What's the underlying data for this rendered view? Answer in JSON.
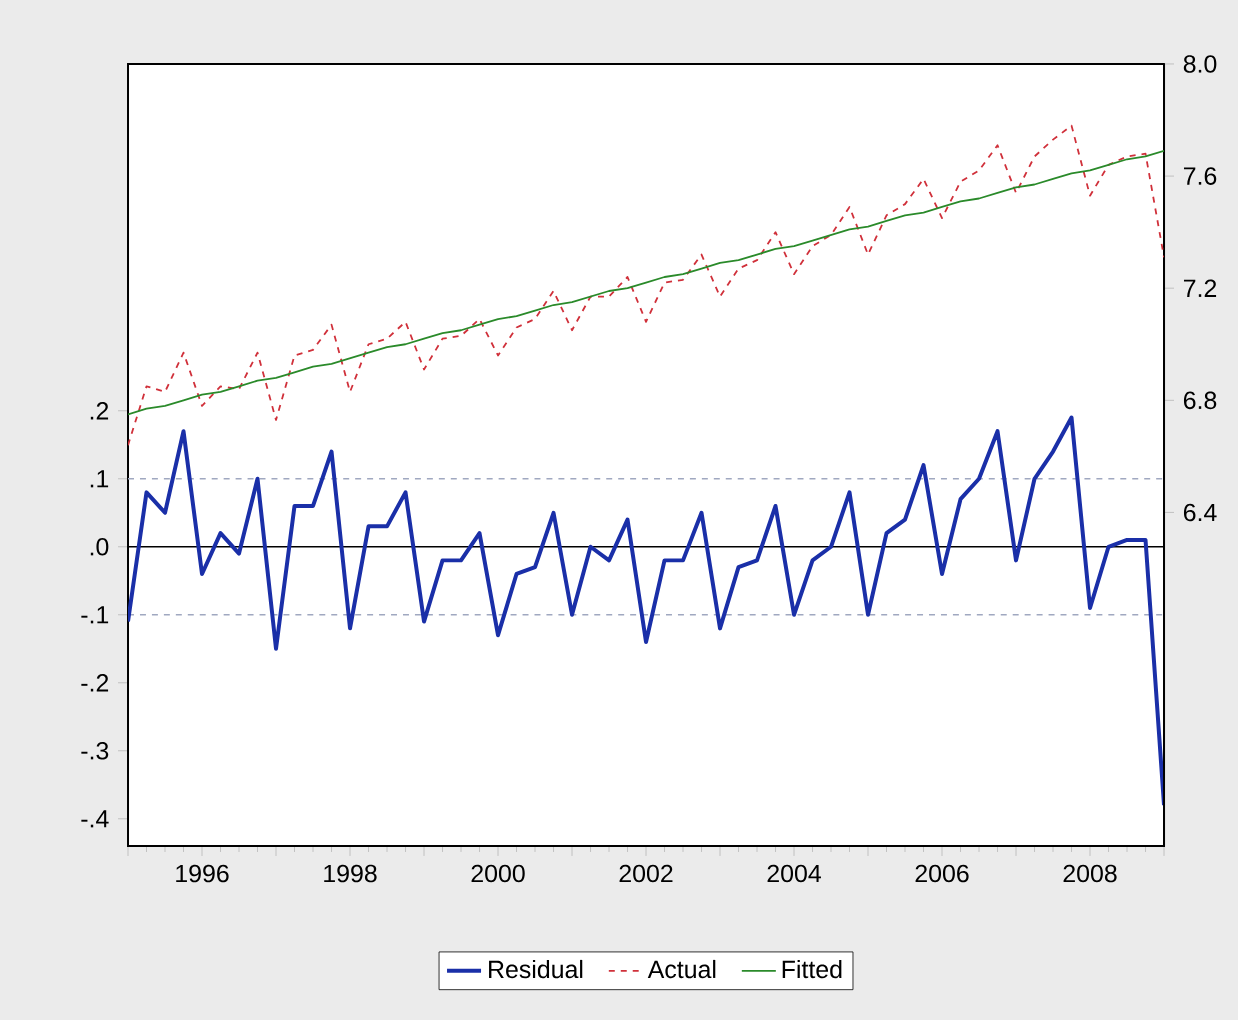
{
  "chart_data": {
    "type": "line",
    "x": [
      1995,
      1995.25,
      1995.5,
      1995.75,
      1996,
      1996.25,
      1996.5,
      1996.75,
      1997,
      1997.25,
      1997.5,
      1997.75,
      1998,
      1998.25,
      1998.5,
      1998.75,
      1999,
      1999.25,
      1999.5,
      1999.75,
      2000,
      2000.25,
      2000.5,
      2000.75,
      2001,
      2001.25,
      2001.5,
      2001.75,
      2002,
      2002.25,
      2002.5,
      2002.75,
      2003,
      2003.25,
      2003.5,
      2003.75,
      2004,
      2004.25,
      2004.5,
      2004.75,
      2005,
      2005.25,
      2005.5,
      2005.75,
      2006,
      2006.25,
      2006.5,
      2006.75,
      2007,
      2007.25,
      2007.5,
      2007.75,
      2008,
      2008.25,
      2008.5,
      2008.75,
      2009
    ],
    "series": [
      {
        "name": "Residual",
        "color": "#1a2fa8",
        "line_style": "solid",
        "values": [
          -0.11,
          0.08,
          0.05,
          0.17,
          -0.04,
          0.02,
          -0.01,
          0.1,
          -0.15,
          0.06,
          0.06,
          0.14,
          -0.12,
          0.03,
          0.03,
          0.08,
          -0.11,
          -0.02,
          -0.02,
          0.02,
          -0.13,
          -0.04,
          -0.03,
          0.05,
          -0.1,
          0.0,
          -0.02,
          0.04,
          -0.14,
          -0.02,
          -0.02,
          0.05,
          -0.12,
          -0.03,
          -0.02,
          0.06,
          -0.1,
          -0.02,
          0.0,
          0.08,
          -0.1,
          0.02,
          0.04,
          0.12,
          -0.04,
          0.07,
          0.1,
          0.17,
          -0.02,
          0.1,
          0.14,
          0.19,
          -0.09,
          0.0,
          0.01,
          0.01,
          -0.38
        ]
      },
      {
        "name": "Actual",
        "color": "#d0303a",
        "line_style": "dashed",
        "axis": "y2",
        "values": [
          6.64,
          6.85,
          6.83,
          6.97,
          6.78,
          6.85,
          6.84,
          6.97,
          6.73,
          6.96,
          6.98,
          7.07,
          6.83,
          7.0,
          7.02,
          7.08,
          6.91,
          7.02,
          7.03,
          7.09,
          6.96,
          7.06,
          7.09,
          7.19,
          7.05,
          7.17,
          7.17,
          7.24,
          7.08,
          7.22,
          7.23,
          7.32,
          7.17,
          7.27,
          7.3,
          7.4,
          7.25,
          7.35,
          7.39,
          7.49,
          7.32,
          7.46,
          7.5,
          7.59,
          7.45,
          7.58,
          7.62,
          7.71,
          7.54,
          7.67,
          7.73,
          7.78,
          7.53,
          7.64,
          7.67,
          7.68,
          7.31
        ]
      },
      {
        "name": "Fitted",
        "color": "#2a8a2a",
        "line_style": "solid",
        "axis": "y2",
        "values": [
          6.75,
          6.77,
          6.78,
          6.8,
          6.82,
          6.83,
          6.85,
          6.87,
          6.88,
          6.9,
          6.92,
          6.93,
          6.95,
          6.97,
          6.99,
          7.0,
          7.02,
          7.04,
          7.05,
          7.07,
          7.09,
          7.1,
          7.12,
          7.14,
          7.15,
          7.17,
          7.19,
          7.2,
          7.22,
          7.24,
          7.25,
          7.27,
          7.29,
          7.3,
          7.32,
          7.34,
          7.35,
          7.37,
          7.39,
          7.41,
          7.42,
          7.44,
          7.46,
          7.47,
          7.49,
          7.51,
          7.52,
          7.54,
          7.56,
          7.57,
          7.59,
          7.61,
          7.62,
          7.64,
          7.66,
          7.67,
          7.69
        ]
      }
    ],
    "xlim": [
      1995,
      2009
    ],
    "xticks": [
      {
        "value": 1995,
        "label": null
      },
      {
        "value": 1996,
        "label": "1996"
      },
      {
        "value": 1997,
        "label": null
      },
      {
        "value": 1998,
        "label": "1998"
      },
      {
        "value": 1999,
        "label": null
      },
      {
        "value": 2000,
        "label": "2000"
      },
      {
        "value": 2001,
        "label": null
      },
      {
        "value": 2002,
        "label": "2002"
      },
      {
        "value": 2003,
        "label": null
      },
      {
        "value": 2004,
        "label": "2004"
      },
      {
        "value": 2005,
        "label": null
      },
      {
        "value": 2006,
        "label": "2006"
      },
      {
        "value": 2007,
        "label": null
      },
      {
        "value": 2008,
        "label": "2008"
      },
      {
        "value": 2009,
        "label": null
      }
    ],
    "ylim": [
      -0.44,
      0.71
    ],
    "yticks": [
      {
        "value": 0.2,
        "label": ".2"
      },
      {
        "value": 0.1,
        "label": ".1"
      },
      {
        "value": 0,
        "label": ".0"
      },
      {
        "value": -0.1,
        "label": "-.1"
      },
      {
        "value": -0.2,
        "label": "-.2"
      },
      {
        "value": -0.3,
        "label": "-.3"
      },
      {
        "value": -0.4,
        "label": "-.4"
      }
    ],
    "y2lim": [
      5.21,
      8.0
    ],
    "y2ticks": [
      6.4,
      6.8,
      7.2,
      7.6,
      {
        "value": 8,
        "label": "8.0"
      }
    ],
    "ref_lines": [
      {
        "axis": "y",
        "value": 0,
        "color": "#000000",
        "line_style": "solid"
      },
      {
        "axis": "y",
        "value": 0.1,
        "color": "#a0a8c0",
        "line_style": "dashed"
      },
      {
        "axis": "y",
        "value": -0.1,
        "color": "#a0a8c0",
        "line_style": "dashed"
      }
    ],
    "grid": false,
    "legend": "bottom"
  }
}
